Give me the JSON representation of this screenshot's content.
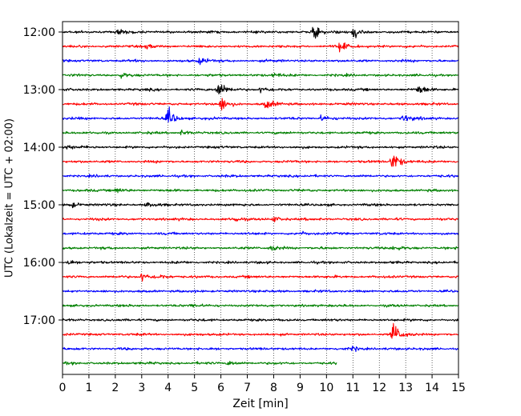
{
  "chart_data": {
    "type": "line",
    "title": "",
    "xlabel": "Zeit  [min]",
    "ylabel": "UTC (Lokalzeit = UTC + 02:00)",
    "xlim": [
      0,
      15
    ],
    "x_ticks": [
      0,
      1,
      2,
      3,
      4,
      5,
      6,
      7,
      8,
      9,
      10,
      11,
      12,
      13,
      14,
      15
    ],
    "x_tick_labels": [
      "0",
      "1",
      "2",
      "3",
      "4",
      "5",
      "6",
      "7",
      "8",
      "9",
      "10",
      "11",
      "12",
      "13",
      "14",
      "15"
    ],
    "y_tick_labels": [
      "12:00",
      "13:00",
      "14:00",
      "15:00",
      "16:00",
      "17:00"
    ],
    "grid": {
      "x": "dotted",
      "y": "none"
    },
    "trace_interval_minutes": 15,
    "color_cycle": [
      "#000000",
      "#ff0000",
      "#0000ff",
      "#008000"
    ],
    "traces": [
      {
        "start": "12:00",
        "color": "#000000",
        "end_minute": 15,
        "events": [
          {
            "t": 2.1,
            "amp": 5
          },
          {
            "t": 9.5,
            "amp": 14
          },
          {
            "t": 11.0,
            "amp": 12
          }
        ]
      },
      {
        "start": "12:15",
        "color": "#ff0000",
        "end_minute": 15,
        "events": [
          {
            "t": 3.2,
            "amp": 4
          },
          {
            "t": 10.5,
            "amp": 10
          }
        ]
      },
      {
        "start": "12:30",
        "color": "#0000ff",
        "end_minute": 15,
        "events": [
          {
            "t": 5.2,
            "amp": 6
          }
        ]
      },
      {
        "start": "12:45",
        "color": "#008000",
        "end_minute": 15,
        "events": [
          {
            "t": 2.2,
            "amp": 4
          },
          {
            "t": 8.0,
            "amp": 4
          }
        ]
      },
      {
        "start": "13:00",
        "color": "#000000",
        "end_minute": 15,
        "events": [
          {
            "t": 5.9,
            "amp": 18
          },
          {
            "t": 7.5,
            "amp": 6
          },
          {
            "t": 13.5,
            "amp": 10
          }
        ]
      },
      {
        "start": "13:15",
        "color": "#ff0000",
        "end_minute": 15,
        "events": [
          {
            "t": 6.0,
            "amp": 14
          },
          {
            "t": 7.7,
            "amp": 9
          }
        ]
      },
      {
        "start": "13:30",
        "color": "#0000ff",
        "end_minute": 15,
        "events": [
          {
            "t": 4.0,
            "amp": 18
          },
          {
            "t": 9.8,
            "amp": 6
          },
          {
            "t": 12.9,
            "amp": 8
          }
        ]
      },
      {
        "start": "13:45",
        "color": "#008000",
        "end_minute": 15,
        "events": [
          {
            "t": 4.5,
            "amp": 4
          }
        ]
      },
      {
        "start": "14:00",
        "color": "#000000",
        "end_minute": 15,
        "events": [
          {
            "t": 0.1,
            "amp": 5
          }
        ]
      },
      {
        "start": "14:15",
        "color": "#ff0000",
        "end_minute": 15,
        "events": [
          {
            "t": 12.5,
            "amp": 22
          }
        ]
      },
      {
        "start": "14:30",
        "color": "#0000ff",
        "end_minute": 15,
        "events": []
      },
      {
        "start": "14:45",
        "color": "#008000",
        "end_minute": 15,
        "events": [
          {
            "t": 2.0,
            "amp": 5
          }
        ]
      },
      {
        "start": "15:00",
        "color": "#000000",
        "end_minute": 15,
        "events": [
          {
            "t": 0.3,
            "amp": 5
          },
          {
            "t": 3.2,
            "amp": 4
          }
        ]
      },
      {
        "start": "15:15",
        "color": "#ff0000",
        "end_minute": 15,
        "events": [
          {
            "t": 6.5,
            "amp": 5
          },
          {
            "t": 8.0,
            "amp": 5
          }
        ]
      },
      {
        "start": "15:30",
        "color": "#0000ff",
        "end_minute": 15,
        "events": [
          {
            "t": 9.0,
            "amp": 3
          }
        ]
      },
      {
        "start": "15:45",
        "color": "#008000",
        "end_minute": 15,
        "events": [
          {
            "t": 7.9,
            "amp": 6
          },
          {
            "t": 12.5,
            "amp": 5
          }
        ]
      },
      {
        "start": "16:00",
        "color": "#000000",
        "end_minute": 15,
        "events": [
          {
            "t": 0.2,
            "amp": 6
          }
        ]
      },
      {
        "start": "16:15",
        "color": "#ff0000",
        "end_minute": 15,
        "events": [
          {
            "t": 3.0,
            "amp": 9
          },
          {
            "t": 3.6,
            "amp": 5
          }
        ]
      },
      {
        "start": "16:30",
        "color": "#0000ff",
        "end_minute": 15,
        "events": []
      },
      {
        "start": "16:45",
        "color": "#008000",
        "end_minute": 15,
        "events": [
          {
            "t": 4.9,
            "amp": 3
          }
        ]
      },
      {
        "start": "17:00",
        "color": "#000000",
        "end_minute": 15,
        "events": []
      },
      {
        "start": "17:15",
        "color": "#ff0000",
        "end_minute": 15,
        "events": [
          {
            "t": 12.5,
            "amp": 24
          }
        ]
      },
      {
        "start": "17:30",
        "color": "#0000ff",
        "end_minute": 15,
        "events": [
          {
            "t": 11.0,
            "amp": 4
          }
        ]
      },
      {
        "start": "17:45",
        "color": "#008000",
        "end_minute": 10.4,
        "events": [
          {
            "t": 6.3,
            "amp": 4
          }
        ]
      }
    ]
  }
}
